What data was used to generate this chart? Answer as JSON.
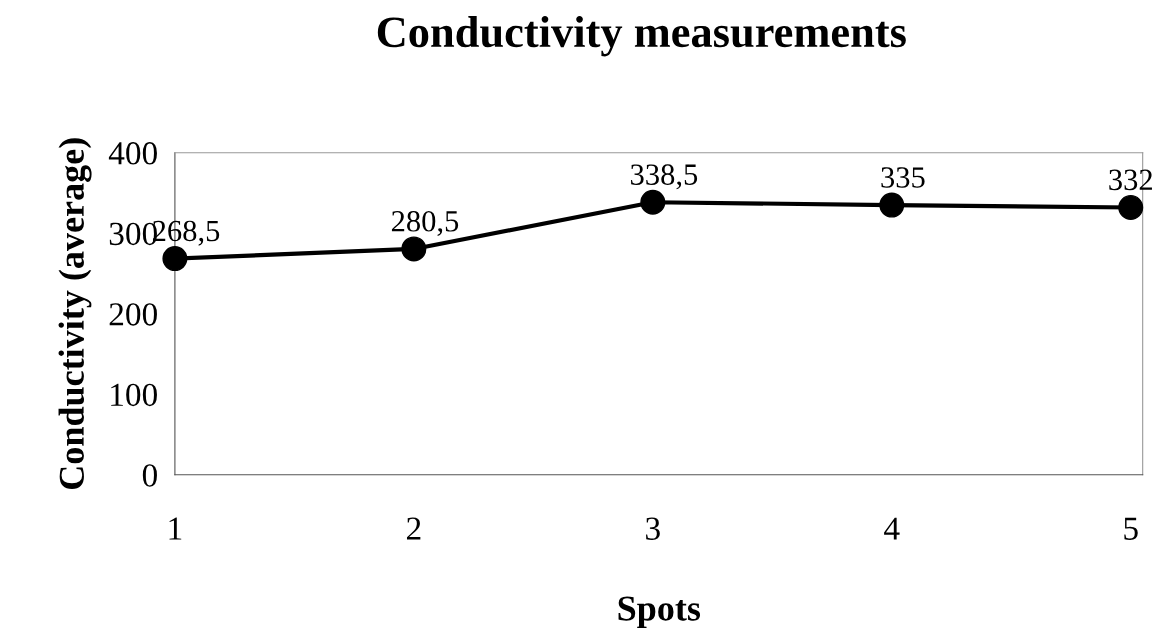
{
  "chart_data": {
    "type": "line",
    "title": "Conductivity measurements",
    "xlabel": "Spots",
    "ylabel": "Conductivity (average)",
    "categories": [
      "1",
      "2",
      "3",
      "4",
      "5"
    ],
    "series": [
      {
        "color": "#000000",
        "values": [
          268.5,
          280.5,
          338.5,
          335,
          332
        ],
        "value_labels": [
          "268,5",
          "280,5",
          "338,5",
          "335",
          "332"
        ]
      }
    ],
    "ylim": [
      0,
      400
    ],
    "yticks": [
      0,
      100,
      200,
      300,
      400
    ],
    "grid": false,
    "legend": false,
    "marker": "circle",
    "line_style": "solid"
  }
}
